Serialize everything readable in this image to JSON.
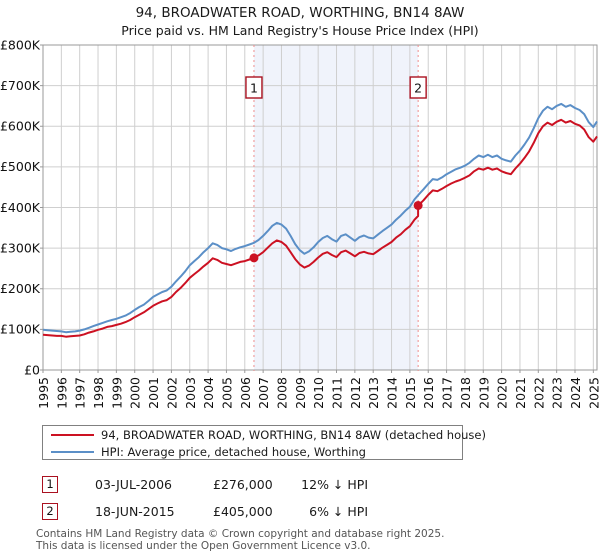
{
  "chart_data": {
    "type": "line",
    "title": "94, BROADWATER ROAD, WORTHING, BN14 8AW",
    "subtitle": "Price paid vs. HM Land Registry's House Price Index (HPI)",
    "unit": "GBP thousands",
    "x_axis": {
      "ticks": [
        1995,
        1996,
        1997,
        1998,
        1999,
        2000,
        2001,
        2002,
        2003,
        2004,
        2005,
        2006,
        2007,
        2008,
        2009,
        2010,
        2011,
        2012,
        2013,
        2014,
        2015,
        2016,
        2017,
        2018,
        2019,
        2020,
        2021,
        2022,
        2023,
        2024,
        2025
      ],
      "range": [
        1995,
        2025.2
      ]
    },
    "y_axis": {
      "range_thousands": [
        0,
        800
      ],
      "ticks": [
        {
          "value": 0,
          "label": "£0"
        },
        {
          "value": 100,
          "label": "£100K"
        },
        {
          "value": 200,
          "label": "£200K"
        },
        {
          "value": 300,
          "label": "£300K"
        },
        {
          "value": 400,
          "label": "£400K"
        },
        {
          "value": 500,
          "label": "£500K"
        },
        {
          "value": 600,
          "label": "£600K"
        },
        {
          "value": 700,
          "label": "£700K"
        },
        {
          "value": 800,
          "label": "£800K"
        }
      ]
    },
    "grid": true,
    "shaded_period": {
      "from": 2006.5,
      "to": 2015.45,
      "color": "#f0f3fb"
    },
    "series": [
      {
        "name": "94, BROADWATER ROAD, WORTHING, BN14 8AW (detached house)",
        "color": "#cc1122",
        "points": [
          [
            1995,
            87
          ],
          [
            1995.25,
            86
          ],
          [
            1995.5,
            85
          ],
          [
            1995.75,
            84
          ],
          [
            1996,
            84
          ],
          [
            1996.25,
            82
          ],
          [
            1996.5,
            83
          ],
          [
            1996.75,
            84
          ],
          [
            1997,
            85
          ],
          [
            1997.25,
            88
          ],
          [
            1997.5,
            92
          ],
          [
            1997.75,
            95
          ],
          [
            1998,
            99
          ],
          [
            1998.25,
            102
          ],
          [
            1998.5,
            106
          ],
          [
            1998.75,
            108
          ],
          [
            1999,
            111
          ],
          [
            1999.25,
            114
          ],
          [
            1999.5,
            118
          ],
          [
            1999.75,
            123
          ],
          [
            2000,
            130
          ],
          [
            2000.25,
            136
          ],
          [
            2000.5,
            142
          ],
          [
            2000.75,
            150
          ],
          [
            2001,
            158
          ],
          [
            2001.25,
            164
          ],
          [
            2001.5,
            169
          ],
          [
            2001.75,
            172
          ],
          [
            2002,
            180
          ],
          [
            2002.25,
            192
          ],
          [
            2002.5,
            202
          ],
          [
            2002.75,
            214
          ],
          [
            2003,
            227
          ],
          [
            2003.25,
            236
          ],
          [
            2003.5,
            245
          ],
          [
            2003.75,
            255
          ],
          [
            2004,
            264
          ],
          [
            2004.25,
            275
          ],
          [
            2004.5,
            271
          ],
          [
            2004.75,
            264
          ],
          [
            2005,
            261
          ],
          [
            2005.25,
            258
          ],
          [
            2005.5,
            262
          ],
          [
            2005.75,
            266
          ],
          [
            2006,
            268
          ],
          [
            2006.25,
            272
          ],
          [
            2006.5,
            276
          ],
          [
            2006.75,
            282
          ],
          [
            2007,
            290
          ],
          [
            2007.25,
            301
          ],
          [
            2007.5,
            312
          ],
          [
            2007.75,
            319
          ],
          [
            2008,
            315
          ],
          [
            2008.25,
            306
          ],
          [
            2008.5,
            290
          ],
          [
            2008.75,
            273
          ],
          [
            2009,
            260
          ],
          [
            2009.25,
            252
          ],
          [
            2009.5,
            257
          ],
          [
            2009.75,
            266
          ],
          [
            2010,
            277
          ],
          [
            2010.25,
            286
          ],
          [
            2010.5,
            290
          ],
          [
            2010.75,
            283
          ],
          [
            2011,
            278
          ],
          [
            2011.25,
            290
          ],
          [
            2011.5,
            294
          ],
          [
            2011.75,
            287
          ],
          [
            2012,
            280
          ],
          [
            2012.25,
            288
          ],
          [
            2012.5,
            291
          ],
          [
            2012.75,
            287
          ],
          [
            2013,
            285
          ],
          [
            2013.25,
            293
          ],
          [
            2013.5,
            301
          ],
          [
            2013.75,
            308
          ],
          [
            2014,
            315
          ],
          [
            2014.25,
            326
          ],
          [
            2014.5,
            334
          ],
          [
            2014.75,
            345
          ],
          [
            2015,
            354
          ],
          [
            2015.25,
            370
          ],
          [
            2015.45,
            379
          ],
          [
            2015.45,
            405
          ],
          [
            2015.5,
            407
          ],
          [
            2015.75,
            418
          ],
          [
            2016,
            431
          ],
          [
            2016.25,
            442
          ],
          [
            2016.5,
            440
          ],
          [
            2016.75,
            446
          ],
          [
            2017,
            453
          ],
          [
            2017.25,
            459
          ],
          [
            2017.5,
            464
          ],
          [
            2017.75,
            468
          ],
          [
            2018,
            473
          ],
          [
            2018.25,
            479
          ],
          [
            2018.5,
            489
          ],
          [
            2018.75,
            496
          ],
          [
            2019,
            493
          ],
          [
            2019.25,
            498
          ],
          [
            2019.5,
            493
          ],
          [
            2019.75,
            496
          ],
          [
            2020,
            489
          ],
          [
            2020.25,
            485
          ],
          [
            2020.5,
            482
          ],
          [
            2020.75,
            496
          ],
          [
            2021,
            508
          ],
          [
            2021.25,
            522
          ],
          [
            2021.5,
            538
          ],
          [
            2021.75,
            559
          ],
          [
            2022,
            583
          ],
          [
            2022.25,
            600
          ],
          [
            2022.5,
            609
          ],
          [
            2022.75,
            603
          ],
          [
            2023,
            611
          ],
          [
            2023.25,
            616
          ],
          [
            2023.5,
            609
          ],
          [
            2023.75,
            613
          ],
          [
            2024,
            606
          ],
          [
            2024.25,
            602
          ],
          [
            2024.5,
            592
          ],
          [
            2024.75,
            573
          ],
          [
            2025,
            562
          ],
          [
            2025.2,
            575
          ]
        ]
      },
      {
        "name": "HPI: Average price, detached house, Worthing",
        "color": "#5b8fc7",
        "points": [
          [
            1995,
            99
          ],
          [
            1995.25,
            98
          ],
          [
            1995.5,
            97
          ],
          [
            1995.75,
            96
          ],
          [
            1996,
            95
          ],
          [
            1996.25,
            93
          ],
          [
            1996.5,
            94
          ],
          [
            1996.75,
            95
          ],
          [
            1997,
            97
          ],
          [
            1997.25,
            100
          ],
          [
            1997.5,
            104
          ],
          [
            1997.75,
            108
          ],
          [
            1998,
            112
          ],
          [
            1998.25,
            116
          ],
          [
            1998.5,
            120
          ],
          [
            1998.75,
            123
          ],
          [
            1999,
            126
          ],
          [
            1999.25,
            130
          ],
          [
            1999.5,
            134
          ],
          [
            1999.75,
            140
          ],
          [
            2000,
            148
          ],
          [
            2000.25,
            155
          ],
          [
            2000.5,
            161
          ],
          [
            2000.75,
            170
          ],
          [
            2001,
            180
          ],
          [
            2001.25,
            186
          ],
          [
            2001.5,
            192
          ],
          [
            2001.75,
            196
          ],
          [
            2002,
            205
          ],
          [
            2002.25,
            218
          ],
          [
            2002.5,
            230
          ],
          [
            2002.75,
            243
          ],
          [
            2003,
            258
          ],
          [
            2003.25,
            268
          ],
          [
            2003.5,
            278
          ],
          [
            2003.75,
            290
          ],
          [
            2004,
            300
          ],
          [
            2004.25,
            312
          ],
          [
            2004.5,
            308
          ],
          [
            2004.75,
            300
          ],
          [
            2005,
            297
          ],
          [
            2005.25,
            293
          ],
          [
            2005.5,
            298
          ],
          [
            2005.75,
            302
          ],
          [
            2006,
            305
          ],
          [
            2006.25,
            309
          ],
          [
            2006.5,
            313
          ],
          [
            2006.75,
            320
          ],
          [
            2007,
            330
          ],
          [
            2007.25,
            342
          ],
          [
            2007.5,
            355
          ],
          [
            2007.75,
            362
          ],
          [
            2008,
            358
          ],
          [
            2008.25,
            348
          ],
          [
            2008.5,
            330
          ],
          [
            2008.75,
            310
          ],
          [
            2009,
            295
          ],
          [
            2009.25,
            286
          ],
          [
            2009.5,
            292
          ],
          [
            2009.75,
            302
          ],
          [
            2010,
            315
          ],
          [
            2010.25,
            325
          ],
          [
            2010.5,
            330
          ],
          [
            2010.75,
            322
          ],
          [
            2011,
            316
          ],
          [
            2011.25,
            330
          ],
          [
            2011.5,
            334
          ],
          [
            2011.75,
            326
          ],
          [
            2012,
            318
          ],
          [
            2012.25,
            327
          ],
          [
            2012.5,
            331
          ],
          [
            2012.75,
            326
          ],
          [
            2013,
            324
          ],
          [
            2013.25,
            333
          ],
          [
            2013.5,
            342
          ],
          [
            2013.75,
            350
          ],
          [
            2014,
            358
          ],
          [
            2014.25,
            370
          ],
          [
            2014.5,
            380
          ],
          [
            2014.75,
            392
          ],
          [
            2015,
            402
          ],
          [
            2015.25,
            420
          ],
          [
            2015.5,
            433
          ],
          [
            2015.75,
            445
          ],
          [
            2016,
            458
          ],
          [
            2016.25,
            470
          ],
          [
            2016.5,
            468
          ],
          [
            2016.75,
            474
          ],
          [
            2017,
            482
          ],
          [
            2017.25,
            488
          ],
          [
            2017.5,
            494
          ],
          [
            2017.75,
            498
          ],
          [
            2018,
            503
          ],
          [
            2018.25,
            510
          ],
          [
            2018.5,
            520
          ],
          [
            2018.75,
            528
          ],
          [
            2019,
            524
          ],
          [
            2019.25,
            530
          ],
          [
            2019.5,
            524
          ],
          [
            2019.75,
            528
          ],
          [
            2020,
            520
          ],
          [
            2020.25,
            516
          ],
          [
            2020.5,
            513
          ],
          [
            2020.75,
            528
          ],
          [
            2021,
            540
          ],
          [
            2021.25,
            555
          ],
          [
            2021.5,
            572
          ],
          [
            2021.75,
            595
          ],
          [
            2022,
            620
          ],
          [
            2022.25,
            638
          ],
          [
            2022.5,
            648
          ],
          [
            2022.75,
            642
          ],
          [
            2023,
            650
          ],
          [
            2023.25,
            655
          ],
          [
            2023.5,
            648
          ],
          [
            2023.75,
            652
          ],
          [
            2024,
            645
          ],
          [
            2024.25,
            640
          ],
          [
            2024.5,
            630
          ],
          [
            2024.75,
            610
          ],
          [
            2025,
            598
          ],
          [
            2025.2,
            612
          ]
        ]
      }
    ],
    "markers": [
      {
        "label": "1",
        "year": 2006.5,
        "value_thousands": 276,
        "date": "03-JUL-2006",
        "price": "£276,000",
        "vs_hpi": "12% ↓ HPI"
      },
      {
        "label": "2",
        "year": 2015.45,
        "value_thousands": 405,
        "date": "18-JUN-2015",
        "price": "£405,000",
        "vs_hpi": "6% ↓ HPI"
      }
    ],
    "marker_line_color": "#ef8e8e",
    "grid_color": "#cfcfcf",
    "frame_color": "#999999",
    "legend_position": "bottom"
  },
  "footer": {
    "line1": "Contains HM Land Registry data © Crown copyright and database right 2025.",
    "line2": "This data is licensed under the Open Government Licence v3.0."
  }
}
